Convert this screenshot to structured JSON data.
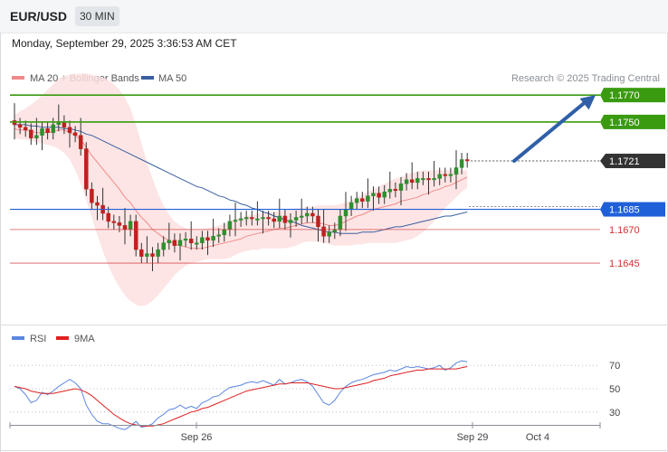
{
  "header": {
    "pair": "EUR/USD",
    "timeframe": "30 MIN",
    "datetime": "Monday, September 29, 2025 3:36:53 AM CET",
    "copyright": "Research © 2025 Trading Central"
  },
  "colors": {
    "ma20": "#f08a8a",
    "ma50": "#3a5fa0",
    "band_fill": "#fde0e0",
    "green_level": "#3a9a10",
    "blue_level": "#1f5fd8",
    "red_level": "#d03030",
    "current": "#333333",
    "arrow": "#2f5fa8",
    "candle_up": "#2f8f2f",
    "candle_down": "#c02020",
    "rsi": "#5b86e0",
    "rsi_ma": "#e02020"
  },
  "chart_data": [
    {
      "type": "candlestick",
      "legend": [
        {
          "name": "MA 20 + Bollinger Bands",
          "color": "#f08a8a"
        },
        {
          "name": "MA 50",
          "color": "#3a5fa0"
        }
      ],
      "ylim": [
        1.1602,
        1.1797
      ],
      "x_tick_labels": [
        "Sep 26",
        "Sep 29",
        "Oct 4"
      ],
      "levels": [
        {
          "value": 1.177,
          "label": "1.1770",
          "style": "green-box"
        },
        {
          "value": 1.175,
          "label": "1.1750",
          "style": "green-box"
        },
        {
          "value": 1.1721,
          "label": "1.1721",
          "style": "current-box"
        },
        {
          "value": 1.1685,
          "label": "1.1685",
          "style": "blue-box"
        },
        {
          "value": 1.167,
          "label": "1.1670",
          "style": "red-text"
        },
        {
          "value": 1.1645,
          "label": "1.1645",
          "style": "red-text"
        }
      ],
      "forecast_arrow": {
        "from": 1.1721,
        "to": 1.177
      },
      "closes": [
        1.1748,
        1.1746,
        1.1744,
        1.1738,
        1.174,
        1.1745,
        1.1742,
        1.1748,
        1.175,
        1.1746,
        1.1742,
        1.174,
        1.173,
        1.17,
        1.169,
        1.1688,
        1.1682,
        1.1676,
        1.1675,
        1.1673,
        1.167,
        1.1676,
        1.1655,
        1.165,
        1.1652,
        1.165,
        1.1655,
        1.166,
        1.1662,
        1.1658,
        1.1662,
        1.1663,
        1.166,
        1.166,
        1.1664,
        1.1662,
        1.1665,
        1.1666,
        1.167,
        1.1676,
        1.1677,
        1.1678,
        1.1679,
        1.1678,
        1.1678,
        1.1679,
        1.1678,
        1.1676,
        1.168,
        1.1675,
        1.1677,
        1.1679,
        1.168,
        1.1682,
        1.168,
        1.1672,
        1.1665,
        1.1668,
        1.167,
        1.168,
        1.1685,
        1.169,
        1.1693,
        1.1691,
        1.1695,
        1.1697,
        1.1694,
        1.1698,
        1.17,
        1.1699,
        1.1704,
        1.1707,
        1.1705,
        1.1708,
        1.1708,
        1.1707,
        1.1708,
        1.1711,
        1.171,
        1.1711,
        1.1716,
        1.1722,
        1.1721
      ],
      "ma20": [
        1.1745,
        1.1744,
        1.1744,
        1.1743,
        1.1742,
        1.1742,
        1.1742,
        1.1743,
        1.1744,
        1.1744,
        1.1742,
        1.174,
        1.1737,
        1.1731,
        1.1725,
        1.172,
        1.1715,
        1.171,
        1.1705,
        1.17,
        1.1694,
        1.169,
        1.1684,
        1.1679,
        1.1675,
        1.167,
        1.1667,
        1.1664,
        1.1662,
        1.1659,
        1.1658,
        1.1657,
        1.1656,
        1.1656,
        1.1656,
        1.1657,
        1.1658,
        1.1659,
        1.166,
        1.1661,
        1.1662,
        1.1663,
        1.1665,
        1.1666,
        1.1667,
        1.1668,
        1.1669,
        1.167,
        1.1671,
        1.1671,
        1.1672,
        1.1673,
        1.1674,
        1.1675,
        1.1675,
        1.1675,
        1.1674,
        1.1673,
        1.1673,
        1.1674,
        1.1676,
        1.1678,
        1.168,
        1.1681,
        1.1683,
        1.1685,
        1.1686,
        1.1687,
        1.1688,
        1.1689,
        1.1691,
        1.1692,
        1.1693,
        1.1694,
        1.1696,
        1.1697,
        1.1699,
        1.17,
        1.1702,
        1.1703,
        1.1705,
        1.1707,
        1.1709
      ],
      "ma50": [
        1.1748,
        1.1748,
        1.1748,
        1.1747,
        1.1747,
        1.1746,
        1.1746,
        1.1746,
        1.1746,
        1.1745,
        1.1745,
        1.1744,
        1.1743,
        1.1741,
        1.174,
        1.1738,
        1.1736,
        1.1734,
        1.1732,
        1.173,
        1.1728,
        1.1726,
        1.1724,
        1.1722,
        1.172,
        1.1718,
        1.1716,
        1.1714,
        1.1712,
        1.171,
        1.1708,
        1.1706,
        1.1704,
        1.1702,
        1.1701,
        1.1699,
        1.1697,
        1.1695,
        1.1694,
        1.1692,
        1.1691,
        1.1689,
        1.1688,
        1.1686,
        1.1685,
        1.1683,
        1.1682,
        1.168,
        1.1679,
        1.1677,
        1.1676,
        1.1675,
        1.1673,
        1.1672,
        1.1671,
        1.167,
        1.1669,
        1.1668,
        1.1668,
        1.1667,
        1.1667,
        1.1667,
        1.1667,
        1.1668,
        1.1668,
        1.1668,
        1.1669,
        1.167,
        1.1671,
        1.1672,
        1.1672,
        1.1673,
        1.1674,
        1.1675,
        1.1676,
        1.1677,
        1.1678,
        1.1679,
        1.168,
        1.168,
        1.1681,
        1.1682,
        1.1683
      ],
      "bb_upper": [
        1.1755,
        1.1758,
        1.176,
        1.1763,
        1.1766,
        1.177,
        1.1774,
        1.1778,
        1.1782,
        1.1784,
        1.1785,
        1.1786,
        1.1786,
        1.1786,
        1.1785,
        1.1784,
        1.1783,
        1.1781,
        1.1778,
        1.1774,
        1.1768,
        1.176,
        1.1748,
        1.1734,
        1.172,
        1.1708,
        1.1697,
        1.1688,
        1.1681,
        1.1676,
        1.1673,
        1.1671,
        1.167,
        1.167,
        1.167,
        1.1671,
        1.1672,
        1.1673,
        1.1674,
        1.1676,
        1.1678,
        1.1679,
        1.168,
        1.1681,
        1.1682,
        1.1682,
        1.1683,
        1.1683,
        1.1684,
        1.1684,
        1.1685,
        1.1686,
        1.1686,
        1.1687,
        1.1687,
        1.1688,
        1.1688,
        1.1688,
        1.1688,
        1.1689,
        1.169,
        1.1692,
        1.1694,
        1.1696,
        1.1698,
        1.17,
        1.1702,
        1.1704,
        1.1706,
        1.1708,
        1.1709,
        1.1711,
        1.1712,
        1.1713,
        1.1714,
        1.1714,
        1.1714,
        1.1714,
        1.1714,
        1.1714,
        1.1714,
        1.1714,
        1.1714
      ],
      "bb_lower": [
        1.1738,
        1.1737,
        1.1737,
        1.1736,
        1.1735,
        1.1734,
        1.1733,
        1.1732,
        1.173,
        1.1727,
        1.1722,
        1.1714,
        1.1704,
        1.1692,
        1.1679,
        1.1666,
        1.1654,
        1.1643,
        1.1634,
        1.1627,
        1.1621,
        1.1617,
        1.1614,
        1.1613,
        1.1614,
        1.1617,
        1.1621,
        1.1626,
        1.1631,
        1.1636,
        1.164,
        1.1643,
        1.1645,
        1.1646,
        1.1647,
        1.1648,
        1.1648,
        1.1648,
        1.1648,
        1.1649,
        1.1651,
        1.1653,
        1.1654,
        1.1655,
        1.1655,
        1.1656,
        1.1656,
        1.1656,
        1.1656,
        1.1656,
        1.1657,
        1.1658,
        1.166,
        1.1661,
        1.1661,
        1.1661,
        1.166,
        1.1659,
        1.1658,
        1.1658,
        1.1658,
        1.1658,
        1.1659,
        1.1659,
        1.166,
        1.166,
        1.166,
        1.166,
        1.166,
        1.166,
        1.1661,
        1.1662,
        1.1663,
        1.1665,
        1.1668,
        1.1672,
        1.1676,
        1.1681,
        1.1686,
        1.169,
        1.1694,
        1.1698,
        1.1701
      ]
    },
    {
      "type": "line",
      "legend": [
        {
          "name": "RSI",
          "color": "#5b86e0"
        },
        {
          "name": "9MA",
          "color": "#e02020"
        }
      ],
      "ylim": [
        19,
        81
      ],
      "y_tick_labels": [
        70,
        50,
        30
      ],
      "rsi": [
        52,
        50,
        45,
        38,
        40,
        47,
        45,
        48,
        52,
        55,
        58,
        55,
        50,
        36,
        28,
        22,
        20,
        20,
        18,
        16,
        15,
        18,
        22,
        17,
        18,
        20,
        25,
        28,
        32,
        33,
        36,
        33,
        35,
        33,
        38,
        40,
        43,
        44,
        48,
        51,
        52,
        53,
        55,
        56,
        55,
        57,
        55,
        53,
        58,
        54,
        55,
        57,
        58,
        56,
        52,
        45,
        38,
        36,
        40,
        47,
        52,
        55,
        57,
        58,
        60,
        62,
        63,
        64,
        66,
        65,
        67,
        69,
        68,
        69,
        68,
        67,
        68,
        70,
        66,
        68,
        72,
        74,
        73
      ],
      "rsi_ma": [
        52,
        51,
        50,
        48,
        47,
        46,
        46,
        46,
        47,
        48,
        49,
        50,
        49,
        47,
        44,
        40,
        36,
        32,
        28,
        25,
        22,
        20,
        19,
        18,
        18,
        18,
        19,
        20,
        22,
        24,
        26,
        28,
        30,
        31,
        33,
        34,
        36,
        38,
        40,
        42,
        44,
        46,
        48,
        49,
        50,
        51,
        52,
        53,
        54,
        54,
        55,
        55,
        55,
        55,
        54,
        53,
        52,
        51,
        50,
        50,
        51,
        52,
        53,
        54,
        55,
        57,
        58,
        59,
        61,
        62,
        63,
        64,
        65,
        66,
        66,
        67,
        67,
        67,
        67,
        67,
        67,
        68,
        69
      ]
    }
  ]
}
